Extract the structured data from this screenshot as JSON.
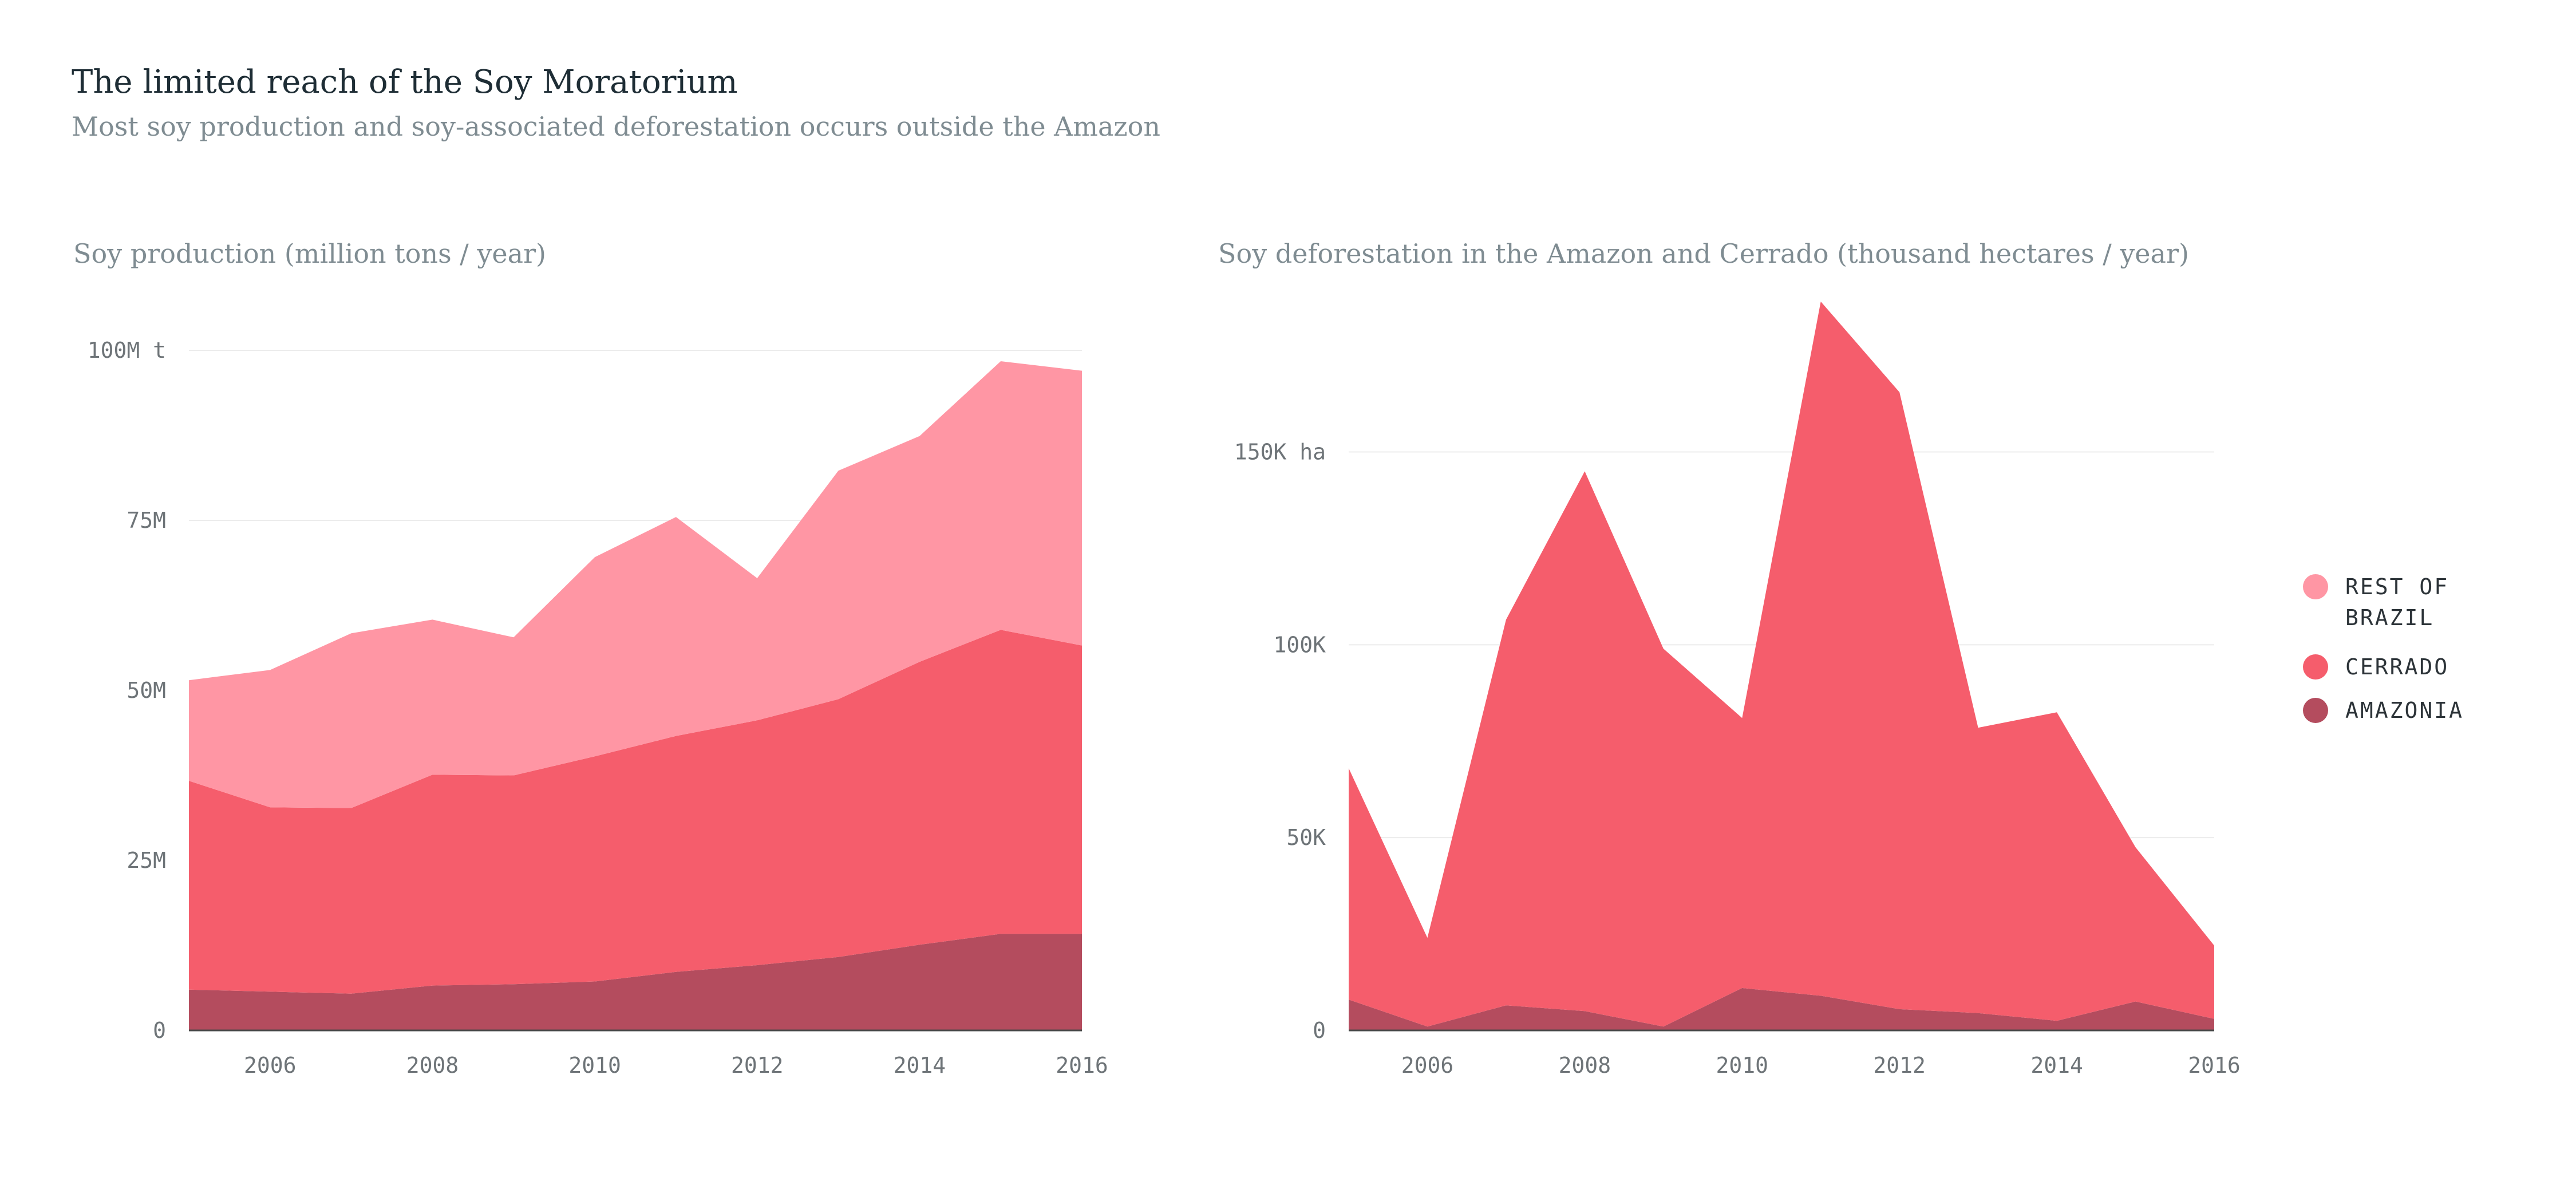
{
  "page": {
    "title": "The limited reach of the Soy Moratorium",
    "subtitle": "Most soy production and soy-associated deforestation occurs outside the Amazon"
  },
  "colors": {
    "rest_of_brazil": "#ff96a4",
    "cerrado": "#f55d6c",
    "amazonia": "#b44c5e"
  },
  "legend": {
    "placement": "right",
    "items": [
      {
        "key": "rest_of_brazil",
        "label_lines": [
          "REST OF",
          "BRAZIL"
        ]
      },
      {
        "key": "cerrado",
        "label_lines": [
          "CERRADO"
        ]
      },
      {
        "key": "amazonia",
        "label_lines": [
          "AMAZONIA"
        ]
      }
    ]
  },
  "chart_data": [
    {
      "type": "area",
      "stacked": true,
      "title": "Soy production (million tons / year)",
      "x": [
        2005,
        2006,
        2007,
        2008,
        2009,
        2010,
        2011,
        2012,
        2013,
        2014,
        2015,
        2016
      ],
      "xlim": [
        2005,
        2016
      ],
      "x_ticks": [
        2006,
        2008,
        2010,
        2012,
        2014,
        2016
      ],
      "x_tick_labels": [
        "2006",
        "2008",
        "2010",
        "2012",
        "2014",
        "2016"
      ],
      "ylim": [
        0,
        100
      ],
      "y_ticks": [
        0,
        25,
        50,
        75,
        100
      ],
      "y_tick_labels": [
        "0",
        "25M",
        "50M",
        "75M",
        "100M t"
      ],
      "grid": true,
      "series": [
        {
          "key": "amazonia",
          "name": "AMAZONIA",
          "values": [
            6,
            5.7,
            5.4,
            6.6,
            6.8,
            7.2,
            8.6,
            9.6,
            10.8,
            12.6,
            14.2,
            14.2
          ]
        },
        {
          "key": "cerrado",
          "name": "CERRADO",
          "values": [
            30.7,
            27.1,
            27.3,
            31,
            30.7,
            33.1,
            34.7,
            36,
            37.9,
            41.6,
            44.7,
            42.4
          ]
        },
        {
          "key": "rest_of_brazil",
          "name": "REST OF BRAZIL",
          "values": [
            14.8,
            20.2,
            25.7,
            22.8,
            20.3,
            29.3,
            32.2,
            20.9,
            33.6,
            33.2,
            39.5,
            40.4
          ]
        }
      ]
    },
    {
      "type": "area",
      "stacked": true,
      "title": "Soy deforestation in the Amazon and Cerrado (thousand hectares / year)",
      "x": [
        2005,
        2006,
        2007,
        2008,
        2009,
        2010,
        2011,
        2012,
        2013,
        2014,
        2015,
        2016
      ],
      "xlim": [
        2005,
        2016
      ],
      "x_ticks": [
        2006,
        2008,
        2010,
        2012,
        2014,
        2016
      ],
      "x_tick_labels": [
        "2006",
        "2008",
        "2010",
        "2012",
        "2014",
        "2016"
      ],
      "ylim": [
        0,
        190
      ],
      "y_ticks": [
        0,
        50,
        100,
        150
      ],
      "y_tick_labels": [
        "0",
        "50K",
        "100K",
        "150K ha"
      ],
      "grid": true,
      "series": [
        {
          "key": "amazonia",
          "name": "AMAZONIA",
          "values": [
            8,
            1,
            6.5,
            5,
            1,
            11,
            9,
            5.5,
            4.5,
            2.5,
            7.5,
            3
          ]
        },
        {
          "key": "cerrado",
          "name": "CERRADO",
          "values": [
            60,
            23,
            100,
            140,
            98,
            70,
            180,
            160,
            74,
            80,
            40,
            19
          ]
        }
      ]
    }
  ]
}
